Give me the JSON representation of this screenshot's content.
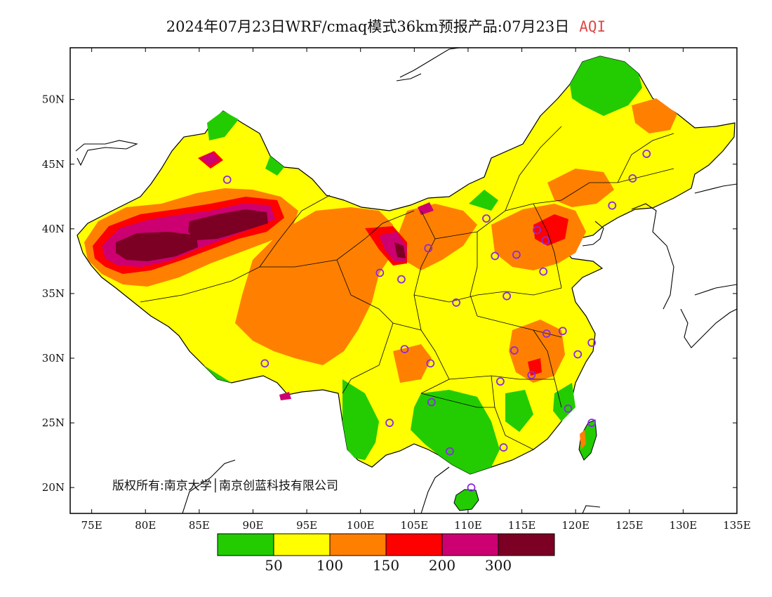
{
  "title": {
    "main": "2024年07月23日WRF/cmaq模式36km预报产品:07月23日",
    "highlight": "AQI",
    "highlight_color": "#e04848"
  },
  "map": {
    "lon_range": [
      73,
      135
    ],
    "lat_range": [
      18,
      54
    ],
    "x_ticks": [
      {
        "value": 75,
        "label": "75E"
      },
      {
        "value": 80,
        "label": "80E"
      },
      {
        "value": 85,
        "label": "85E"
      },
      {
        "value": 90,
        "label": "90E"
      },
      {
        "value": 95,
        "label": "95E"
      },
      {
        "value": 100,
        "label": "100E"
      },
      {
        "value": 105,
        "label": "105E"
      },
      {
        "value": 110,
        "label": "110E"
      },
      {
        "value": 115,
        "label": "115E"
      },
      {
        "value": 120,
        "label": "120E"
      },
      {
        "value": 125,
        "label": "125E"
      },
      {
        "value": 130,
        "label": "130E"
      },
      {
        "value": 135,
        "label": "135E"
      }
    ],
    "y_ticks": [
      {
        "value": 50,
        "label": "50N"
      },
      {
        "value": 45,
        "label": "45N"
      },
      {
        "value": 40,
        "label": "40N"
      },
      {
        "value": 35,
        "label": "35N"
      },
      {
        "value": 30,
        "label": "30N"
      },
      {
        "value": 25,
        "label": "25N"
      },
      {
        "value": 20,
        "label": "20N"
      }
    ],
    "copyright": "版权所有:南京大学│南京创蓝科技有限公司",
    "marker_color": "#8a2be2"
  },
  "legend": {
    "colors": [
      "#22cc00",
      "#ffff00",
      "#ff8000",
      "#ff0000",
      "#cc0070",
      "#7b0023"
    ],
    "labels": [
      "50",
      "100",
      "150",
      "200",
      "300"
    ]
  }
}
